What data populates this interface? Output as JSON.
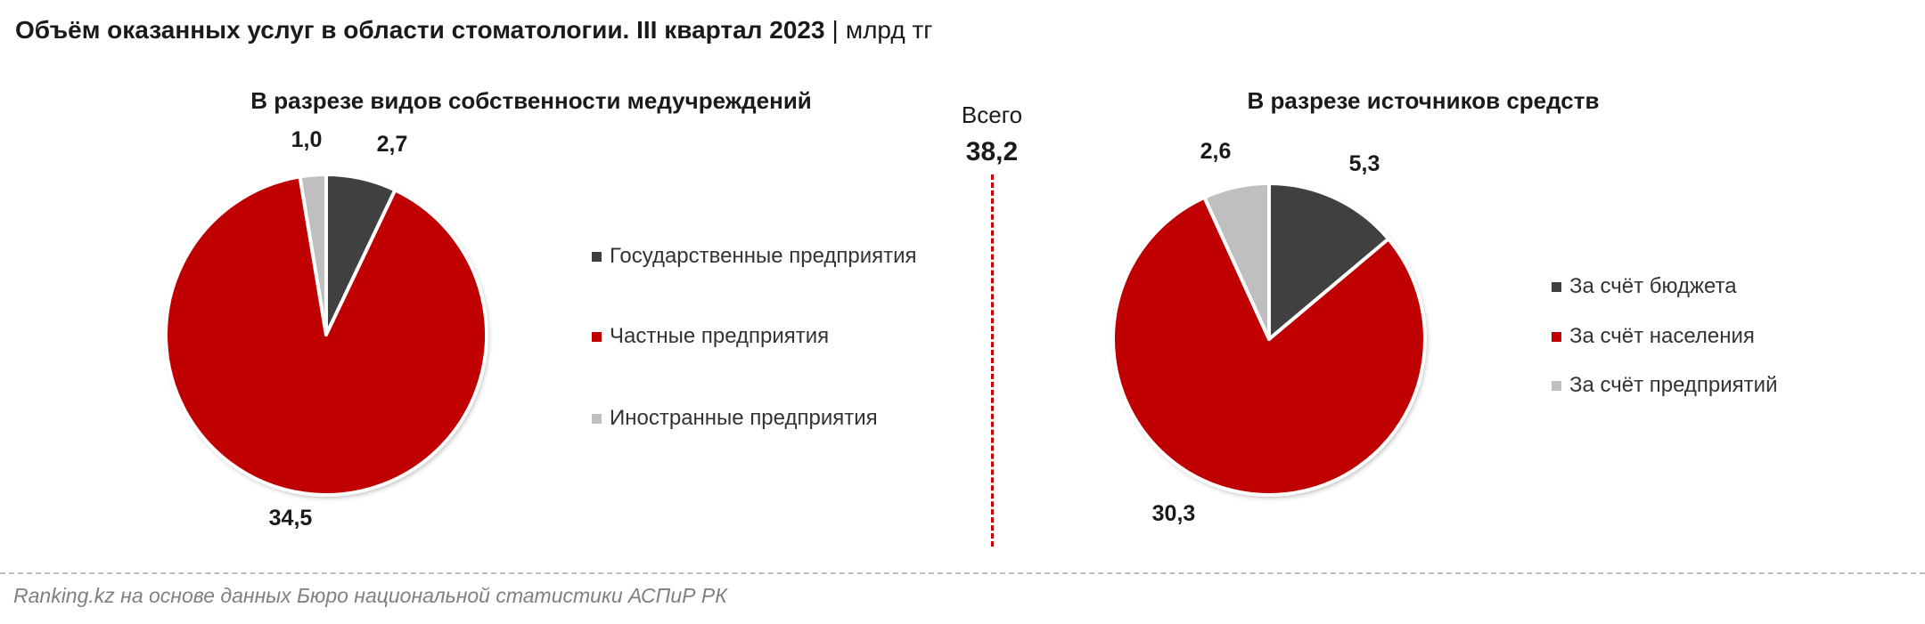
{
  "title": {
    "main": "Объём оказанных услуг в области стоматологии. III квартал 2023",
    "separator": "|",
    "unit": "млрд тг"
  },
  "total": {
    "label": "Всего",
    "value": "38,2"
  },
  "chart_data": [
    {
      "type": "pie",
      "title": "В разрезе видов собственности медучреждений",
      "slices": [
        {
          "name": "Государственные предприятия",
          "value": 2.7,
          "label": "2,7",
          "color": "#404040"
        },
        {
          "name": "Частные предприятия",
          "value": 34.5,
          "label": "34,5",
          "color": "#c00000"
        },
        {
          "name": "Иностранные предприятия",
          "value": 1.0,
          "label": "1,0",
          "color": "#bfbfbf"
        }
      ],
      "legend_position": "right"
    },
    {
      "type": "pie",
      "title": "В разрезе источников средств",
      "slices": [
        {
          "name": "За счёт бюджета",
          "value": 5.3,
          "label": "5,3",
          "color": "#404040"
        },
        {
          "name": "За счёт населения",
          "value": 30.3,
          "label": "30,3",
          "color": "#c00000"
        },
        {
          "name": "За счёт предприятий",
          "value": 2.6,
          "label": "2,6",
          "color": "#bfbfbf"
        }
      ],
      "legend_position": "right"
    }
  ],
  "source": "Ranking.kz на основе данных Бюро национальной статистики АСПиР РК"
}
